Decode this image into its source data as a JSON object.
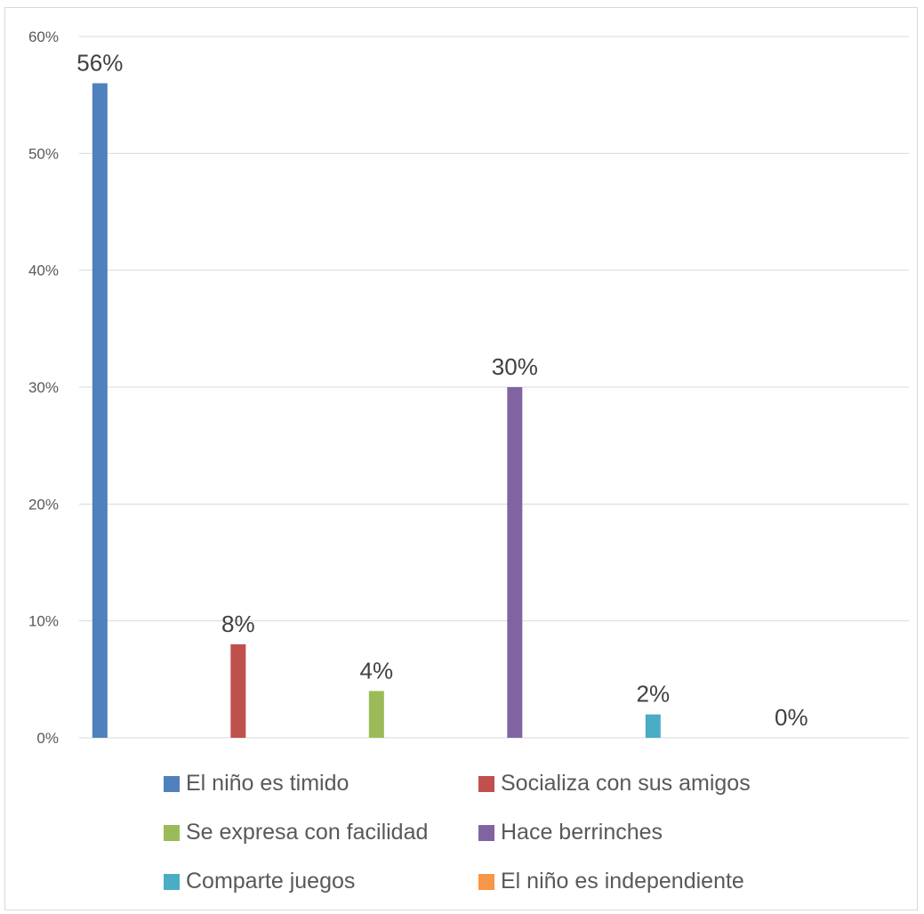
{
  "chart_data": {
    "type": "bar",
    "categories": [
      "El niño es timido",
      "Socializa con sus amigos",
      "Se expresa con facilidad",
      "Hace berrinches",
      "Comparte juegos",
      "El niño es independiente"
    ],
    "values": [
      56,
      8,
      4,
      30,
      2,
      0
    ],
    "data_labels": [
      "56%",
      "8%",
      "4%",
      "30%",
      "2%",
      "0%"
    ],
    "colors": [
      "#4f81bd",
      "#c0504d",
      "#9bbb59",
      "#8064a2",
      "#4bacc6",
      "#f79646"
    ],
    "ylim": [
      0,
      60
    ],
    "yticks": [
      0,
      10,
      20,
      30,
      40,
      50,
      60
    ],
    "ytick_labels": [
      "0%",
      "10%",
      "20%",
      "30%",
      "40%",
      "50%",
      "60%"
    ],
    "grid": true,
    "legend_position": "bottom",
    "title": "",
    "xlabel": "",
    "ylabel": ""
  }
}
